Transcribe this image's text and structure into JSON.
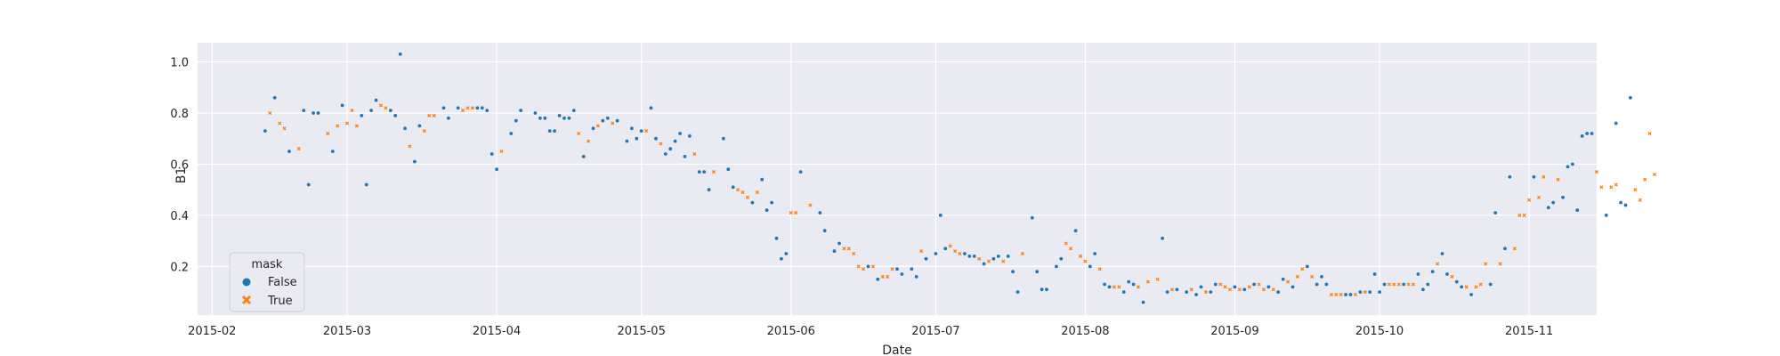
{
  "chart_data": {
    "type": "scatter",
    "title": "",
    "xlabel": "Date",
    "ylabel": "B1",
    "x_axis_type": "date",
    "xlim": [
      "2015-01-29",
      "2015-11-15"
    ],
    "ylim": [
      0.01,
      1.075
    ],
    "x_ticks": [
      "2015-02-01",
      "2015-03-01",
      "2015-04-01",
      "2015-05-01",
      "2015-06-01",
      "2015-07-01",
      "2015-08-01",
      "2015-09-01",
      "2015-10-01",
      "2015-11-01"
    ],
    "x_tick_labels": [
      "2015-02",
      "2015-03",
      "2015-04",
      "2015-05",
      "2015-06",
      "2015-07",
      "2015-08",
      "2015-09",
      "2015-10",
      "2015-11"
    ],
    "y_ticks": [
      0.2,
      0.4,
      0.6,
      0.8,
      1.0
    ],
    "y_tick_labels": [
      "0.2",
      "0.4",
      "0.6",
      "0.8",
      "1.0"
    ],
    "grid": true,
    "legend": {
      "title": "mask",
      "placement": "lower-left",
      "entries": [
        {
          "label": "False",
          "marker": "circle",
          "color": "#1f77b4"
        },
        {
          "label": "True",
          "marker": "x",
          "color": "#ff7f0e"
        }
      ]
    },
    "colors": {
      "False": "#1f77b4",
      "True": "#ff7f0e",
      "plot_background": "#eaeaf2",
      "grid": "#ffffff"
    },
    "series": [
      {
        "name": "False",
        "points": [
          [
            "2015-02-12",
            0.73
          ],
          [
            "2015-02-14",
            0.86
          ],
          [
            "2015-02-17",
            0.65
          ],
          [
            "2015-02-20",
            0.81
          ],
          [
            "2015-02-21",
            0.52
          ],
          [
            "2015-02-22",
            0.8
          ],
          [
            "2015-02-23",
            0.8
          ],
          [
            "2015-02-26",
            0.65
          ],
          [
            "2015-02-28",
            0.83
          ],
          [
            "2015-03-04",
            0.79
          ],
          [
            "2015-03-05",
            0.52
          ],
          [
            "2015-03-06",
            0.81
          ],
          [
            "2015-03-07",
            0.85
          ],
          [
            "2015-03-10",
            0.81
          ],
          [
            "2015-03-11",
            0.79
          ],
          [
            "2015-03-12",
            1.03
          ],
          [
            "2015-03-13",
            0.74
          ],
          [
            "2015-03-15",
            0.61
          ],
          [
            "2015-03-16",
            0.75
          ],
          [
            "2015-03-21",
            0.82
          ],
          [
            "2015-03-22",
            0.78
          ],
          [
            "2015-03-24",
            0.82
          ],
          [
            "2015-03-28",
            0.82
          ],
          [
            "2015-03-29",
            0.82
          ],
          [
            "2015-03-30",
            0.81
          ],
          [
            "2015-03-31",
            0.64
          ],
          [
            "2015-04-01",
            0.58
          ],
          [
            "2015-04-04",
            0.72
          ],
          [
            "2015-04-05",
            0.77
          ],
          [
            "2015-04-06",
            0.81
          ],
          [
            "2015-04-09",
            0.8
          ],
          [
            "2015-04-10",
            0.78
          ],
          [
            "2015-04-11",
            0.78
          ],
          [
            "2015-04-12",
            0.73
          ],
          [
            "2015-04-13",
            0.73
          ],
          [
            "2015-04-14",
            0.79
          ],
          [
            "2015-04-15",
            0.78
          ],
          [
            "2015-04-16",
            0.78
          ],
          [
            "2015-04-17",
            0.81
          ],
          [
            "2015-04-19",
            0.63
          ],
          [
            "2015-04-21",
            0.74
          ],
          [
            "2015-04-23",
            0.77
          ],
          [
            "2015-04-24",
            0.78
          ],
          [
            "2015-04-26",
            0.77
          ],
          [
            "2015-04-28",
            0.69
          ],
          [
            "2015-04-29",
            0.74
          ],
          [
            "2015-04-30",
            0.7
          ],
          [
            "2015-05-01",
            0.73
          ],
          [
            "2015-05-03",
            0.82
          ],
          [
            "2015-05-04",
            0.7
          ],
          [
            "2015-05-06",
            0.64
          ],
          [
            "2015-05-07",
            0.66
          ],
          [
            "2015-05-08",
            0.69
          ],
          [
            "2015-05-09",
            0.72
          ],
          [
            "2015-05-10",
            0.63
          ],
          [
            "2015-05-11",
            0.71
          ],
          [
            "2015-05-13",
            0.57
          ],
          [
            "2015-05-14",
            0.57
          ],
          [
            "2015-05-15",
            0.5
          ],
          [
            "2015-05-18",
            0.7
          ],
          [
            "2015-05-19",
            0.58
          ],
          [
            "2015-05-20",
            0.51
          ],
          [
            "2015-05-24",
            0.45
          ],
          [
            "2015-05-26",
            0.54
          ],
          [
            "2015-05-27",
            0.42
          ],
          [
            "2015-05-28",
            0.45
          ],
          [
            "2015-05-29",
            0.31
          ],
          [
            "2015-05-30",
            0.23
          ],
          [
            "2015-05-31",
            0.25
          ],
          [
            "2015-06-03",
            0.57
          ],
          [
            "2015-06-07",
            0.41
          ],
          [
            "2015-06-08",
            0.34
          ],
          [
            "2015-06-10",
            0.26
          ],
          [
            "2015-06-11",
            0.29
          ],
          [
            "2015-06-17",
            0.2
          ],
          [
            "2015-06-19",
            0.15
          ],
          [
            "2015-06-23",
            0.19
          ],
          [
            "2015-06-24",
            0.17
          ],
          [
            "2015-06-26",
            0.19
          ],
          [
            "2015-06-27",
            0.16
          ],
          [
            "2015-06-29",
            0.23
          ],
          [
            "2015-07-01",
            0.25
          ],
          [
            "2015-07-02",
            0.4
          ],
          [
            "2015-07-03",
            0.27
          ],
          [
            "2015-07-07",
            0.25
          ],
          [
            "2015-07-08",
            0.24
          ],
          [
            "2015-07-09",
            0.24
          ],
          [
            "2015-07-11",
            0.21
          ],
          [
            "2015-07-13",
            0.23
          ],
          [
            "2015-07-14",
            0.24
          ],
          [
            "2015-07-16",
            0.24
          ],
          [
            "2015-07-17",
            0.18
          ],
          [
            "2015-07-18",
            0.1
          ],
          [
            "2015-07-21",
            0.39
          ],
          [
            "2015-07-22",
            0.18
          ],
          [
            "2015-07-23",
            0.11
          ],
          [
            "2015-07-24",
            0.11
          ],
          [
            "2015-07-26",
            0.2
          ],
          [
            "2015-07-27",
            0.23
          ],
          [
            "2015-07-30",
            0.34
          ],
          [
            "2015-08-02",
            0.2
          ],
          [
            "2015-08-03",
            0.25
          ],
          [
            "2015-08-05",
            0.13
          ],
          [
            "2015-08-06",
            0.12
          ],
          [
            "2015-08-09",
            0.1
          ],
          [
            "2015-08-10",
            0.14
          ],
          [
            "2015-08-11",
            0.13
          ],
          [
            "2015-08-13",
            0.06
          ],
          [
            "2015-08-17",
            0.31
          ],
          [
            "2015-08-18",
            0.1
          ],
          [
            "2015-08-20",
            0.11
          ],
          [
            "2015-08-22",
            0.1
          ],
          [
            "2015-08-24",
            0.09
          ],
          [
            "2015-08-25",
            0.12
          ],
          [
            "2015-08-27",
            0.1
          ],
          [
            "2015-08-28",
            0.13
          ],
          [
            "2015-09-01",
            0.12
          ],
          [
            "2015-09-03",
            0.11
          ],
          [
            "2015-09-05",
            0.13
          ],
          [
            "2015-09-08",
            0.12
          ],
          [
            "2015-09-10",
            0.1
          ],
          [
            "2015-09-11",
            0.15
          ],
          [
            "2015-09-13",
            0.12
          ],
          [
            "2015-09-16",
            0.2
          ],
          [
            "2015-09-18",
            0.13
          ],
          [
            "2015-09-19",
            0.16
          ],
          [
            "2015-09-20",
            0.13
          ],
          [
            "2015-09-24",
            0.09
          ],
          [
            "2015-09-25",
            0.09
          ],
          [
            "2015-09-27",
            0.1
          ],
          [
            "2015-09-29",
            0.1
          ],
          [
            "2015-09-30",
            0.17
          ],
          [
            "2015-10-01",
            0.1
          ],
          [
            "2015-10-02",
            0.13
          ],
          [
            "2015-10-06",
            0.13
          ],
          [
            "2015-10-09",
            0.17
          ],
          [
            "2015-10-10",
            0.11
          ],
          [
            "2015-10-11",
            0.13
          ],
          [
            "2015-10-12",
            0.18
          ],
          [
            "2015-10-14",
            0.25
          ],
          [
            "2015-10-15",
            0.17
          ],
          [
            "2015-10-17",
            0.14
          ],
          [
            "2015-10-18",
            0.12
          ],
          [
            "2015-10-20",
            0.09
          ],
          [
            "2015-10-24",
            0.13
          ],
          [
            "2015-10-25",
            0.41
          ],
          [
            "2015-10-27",
            0.27
          ],
          [
            "2015-10-28",
            0.55
          ],
          [
            "2015-11-02",
            0.55
          ],
          [
            "2015-11-05",
            0.43
          ],
          [
            "2015-11-06",
            0.45
          ],
          [
            "2015-11-08",
            0.47
          ],
          [
            "2015-11-09",
            0.59
          ],
          [
            "2015-11-10",
            0.6
          ],
          [
            "2015-11-11",
            0.42
          ],
          [
            "2015-11-12",
            0.71
          ],
          [
            "2015-11-13",
            0.72
          ],
          [
            "2015-11-14",
            0.72
          ],
          [
            "2015-11-17",
            0.4
          ],
          [
            "2015-11-19",
            0.76
          ],
          [
            "2015-11-20",
            0.45
          ],
          [
            "2015-11-21",
            0.44
          ],
          [
            "2015-11-22",
            0.86
          ]
        ]
      },
      {
        "name": "True",
        "points": [
          [
            "2015-02-13",
            0.8
          ],
          [
            "2015-02-15",
            0.76
          ],
          [
            "2015-02-16",
            0.74
          ],
          [
            "2015-02-19",
            0.66
          ],
          [
            "2015-02-25",
            0.72
          ],
          [
            "2015-02-27",
            0.75
          ],
          [
            "2015-03-01",
            0.76
          ],
          [
            "2015-03-02",
            0.81
          ],
          [
            "2015-03-03",
            0.75
          ],
          [
            "2015-03-08",
            0.83
          ],
          [
            "2015-03-09",
            0.82
          ],
          [
            "2015-03-14",
            0.67
          ],
          [
            "2015-03-17",
            0.73
          ],
          [
            "2015-03-18",
            0.79
          ],
          [
            "2015-03-19",
            0.79
          ],
          [
            "2015-03-25",
            0.81
          ],
          [
            "2015-03-26",
            0.82
          ],
          [
            "2015-03-27",
            0.82
          ],
          [
            "2015-04-02",
            0.65
          ],
          [
            "2015-04-18",
            0.72
          ],
          [
            "2015-04-20",
            0.69
          ],
          [
            "2015-04-22",
            0.75
          ],
          [
            "2015-04-25",
            0.76
          ],
          [
            "2015-05-02",
            0.73
          ],
          [
            "2015-05-05",
            0.68
          ],
          [
            "2015-05-12",
            0.64
          ],
          [
            "2015-05-16",
            0.57
          ],
          [
            "2015-05-21",
            0.5
          ],
          [
            "2015-05-22",
            0.49
          ],
          [
            "2015-05-23",
            0.47
          ],
          [
            "2015-05-25",
            0.49
          ],
          [
            "2015-06-01",
            0.41
          ],
          [
            "2015-06-02",
            0.41
          ],
          [
            "2015-06-05",
            0.44
          ],
          [
            "2015-06-12",
            0.27
          ],
          [
            "2015-06-13",
            0.27
          ],
          [
            "2015-06-14",
            0.25
          ],
          [
            "2015-06-15",
            0.2
          ],
          [
            "2015-06-16",
            0.19
          ],
          [
            "2015-06-18",
            0.2
          ],
          [
            "2015-06-20",
            0.16
          ],
          [
            "2015-06-21",
            0.16
          ],
          [
            "2015-06-22",
            0.19
          ],
          [
            "2015-06-28",
            0.26
          ],
          [
            "2015-07-04",
            0.28
          ],
          [
            "2015-07-05",
            0.26
          ],
          [
            "2015-07-06",
            0.25
          ],
          [
            "2015-07-10",
            0.23
          ],
          [
            "2015-07-12",
            0.22
          ],
          [
            "2015-07-15",
            0.22
          ],
          [
            "2015-07-19",
            0.25
          ],
          [
            "2015-07-28",
            0.29
          ],
          [
            "2015-07-29",
            0.27
          ],
          [
            "2015-07-31",
            0.24
          ],
          [
            "2015-08-01",
            0.22
          ],
          [
            "2015-08-04",
            0.19
          ],
          [
            "2015-08-07",
            0.12
          ],
          [
            "2015-08-08",
            0.12
          ],
          [
            "2015-08-12",
            0.12
          ],
          [
            "2015-08-14",
            0.14
          ],
          [
            "2015-08-16",
            0.15
          ],
          [
            "2015-08-19",
            0.11
          ],
          [
            "2015-08-23",
            0.11
          ],
          [
            "2015-08-26",
            0.1
          ],
          [
            "2015-08-29",
            0.13
          ],
          [
            "2015-08-30",
            0.12
          ],
          [
            "2015-08-31",
            0.11
          ],
          [
            "2015-09-02",
            0.11
          ],
          [
            "2015-09-04",
            0.12
          ],
          [
            "2015-09-06",
            0.13
          ],
          [
            "2015-09-07",
            0.11
          ],
          [
            "2015-09-09",
            0.11
          ],
          [
            "2015-09-12",
            0.14
          ],
          [
            "2015-09-14",
            0.16
          ],
          [
            "2015-09-15",
            0.19
          ],
          [
            "2015-09-17",
            0.16
          ],
          [
            "2015-09-21",
            0.09
          ],
          [
            "2015-09-22",
            0.09
          ],
          [
            "2015-09-23",
            0.09
          ],
          [
            "2015-09-26",
            0.09
          ],
          [
            "2015-09-28",
            0.1
          ],
          [
            "2015-10-03",
            0.13
          ],
          [
            "2015-10-04",
            0.13
          ],
          [
            "2015-10-05",
            0.13
          ],
          [
            "2015-10-07",
            0.13
          ],
          [
            "2015-10-08",
            0.13
          ],
          [
            "2015-10-13",
            0.21
          ],
          [
            "2015-10-16",
            0.16
          ],
          [
            "2015-10-19",
            0.12
          ],
          [
            "2015-10-21",
            0.12
          ],
          [
            "2015-10-22",
            0.13
          ],
          [
            "2015-10-23",
            0.21
          ],
          [
            "2015-10-26",
            0.21
          ],
          [
            "2015-10-29",
            0.27
          ],
          [
            "2015-10-30",
            0.4
          ],
          [
            "2015-10-31",
            0.4
          ],
          [
            "2015-11-01",
            0.46
          ],
          [
            "2015-11-03",
            0.47
          ],
          [
            "2015-11-04",
            0.55
          ],
          [
            "2015-11-07",
            0.54
          ],
          [
            "2015-11-15",
            0.57
          ],
          [
            "2015-11-16",
            0.51
          ],
          [
            "2015-11-18",
            0.51
          ],
          [
            "2015-11-19",
            0.52
          ],
          [
            "2015-11-23",
            0.5
          ],
          [
            "2015-11-24",
            0.46
          ],
          [
            "2015-11-25",
            0.54
          ],
          [
            "2015-11-26",
            0.72
          ],
          [
            "2015-11-27",
            0.56
          ]
        ]
      }
    ]
  }
}
